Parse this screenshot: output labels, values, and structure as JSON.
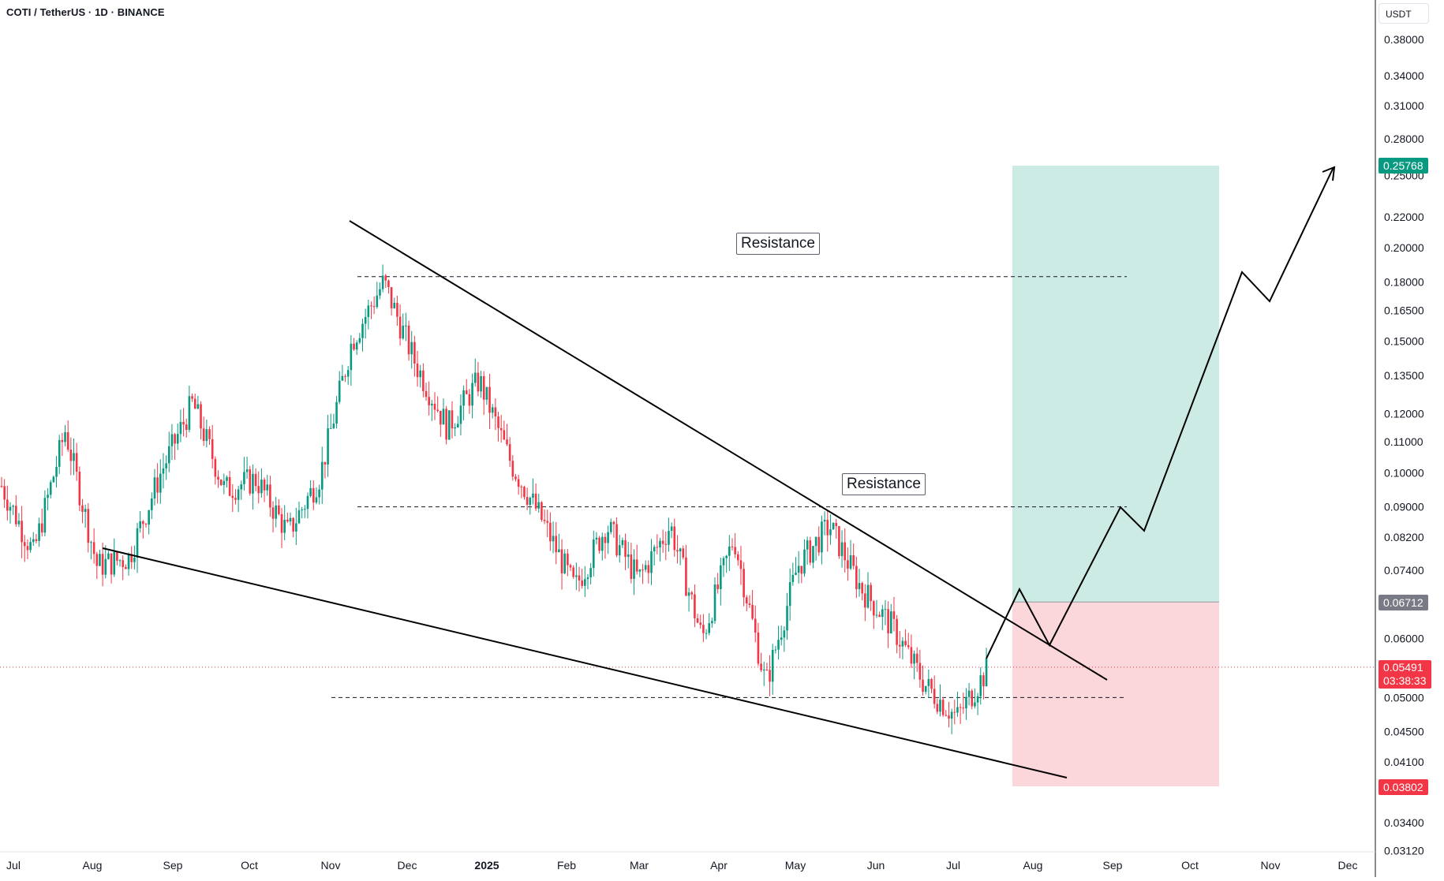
{
  "header": {
    "symbol_title": "COTI / TetherUS · 1D · BINANCE",
    "currency": "USDT"
  },
  "annotations": {
    "resistance_upper": "Resistance",
    "resistance_lower": "Resistance"
  },
  "price_tags": {
    "target": "0.25768",
    "entry": "0.06712",
    "current": "0.05491",
    "countdown": "03:38:33",
    "stop": "0.03802"
  },
  "colors": {
    "up": "#089981",
    "down": "#f23645",
    "target_zone": "#cdebe5",
    "stop_zone": "#fbd6da",
    "target_tag": "#089981",
    "entry_tag": "#787b86",
    "current_tag": "#f23645",
    "stop_tag": "#f23645",
    "drawing": "#000000"
  },
  "chart_data": {
    "type": "candlestick",
    "scale": "log",
    "y_axis_ticks": [
      "0.38000",
      "0.34000",
      "0.31000",
      "0.28000",
      "0.25000",
      "0.22000",
      "0.20000",
      "0.18000",
      "0.16500",
      "0.15000",
      "0.13500",
      "0.12000",
      "0.11000",
      "0.10000",
      "0.09000",
      "0.08200",
      "0.07400",
      "0.06700",
      "0.06000",
      "0.05491",
      "0.05000",
      "0.04500",
      "0.04100",
      "0.03800",
      "0.03400",
      "0.03120"
    ],
    "x_axis_ticks": [
      "Jul",
      "Aug",
      "Sep",
      "Oct",
      "Nov",
      "Dec",
      "2025",
      "Feb",
      "Mar",
      "Apr",
      "May",
      "Jun",
      "Jul",
      "Aug",
      "Sep",
      "Oct",
      "Nov",
      "Dec"
    ],
    "x_axis_bold": [
      "2025"
    ],
    "resistance_levels": [
      0.183,
      0.09
    ],
    "support_level": 0.05,
    "position": {
      "entry": 0.06712,
      "target": 0.25768,
      "stop": 0.03802
    },
    "current_price": 0.05491,
    "ohlc_anchors": [
      [
        "Jul",
        0.096
      ],
      [
        "Jul",
        0.078
      ],
      [
        "Aug",
        0.114
      ],
      [
        "Aug",
        0.075
      ],
      [
        "Sep",
        0.077
      ],
      [
        "Sep",
        0.1
      ],
      [
        "Oct",
        0.124
      ],
      [
        "Oct",
        0.095
      ],
      [
        "Nov",
        0.098
      ],
      [
        "Nov",
        0.083
      ],
      [
        "Nov",
        0.099
      ],
      [
        "Dec",
        0.15
      ],
      [
        "Dec",
        0.18
      ],
      [
        "Dec",
        0.14
      ],
      [
        "2025",
        0.115
      ],
      [
        "2025",
        0.133
      ],
      [
        "2025",
        0.103
      ],
      [
        "Feb",
        0.086
      ],
      [
        "Feb",
        0.07
      ],
      [
        "Feb",
        0.085
      ],
      [
        "Mar",
        0.072
      ],
      [
        "Mar",
        0.085
      ],
      [
        "Mar",
        0.06
      ],
      [
        "Apr",
        0.082
      ],
      [
        "Apr",
        0.052
      ],
      [
        "May",
        0.075
      ],
      [
        "May",
        0.085
      ],
      [
        "May",
        0.07
      ],
      [
        "Jun",
        0.062
      ],
      [
        "Jun",
        0.052
      ],
      [
        "Jul",
        0.047
      ],
      [
        "Jul",
        0.0549
      ]
    ]
  }
}
